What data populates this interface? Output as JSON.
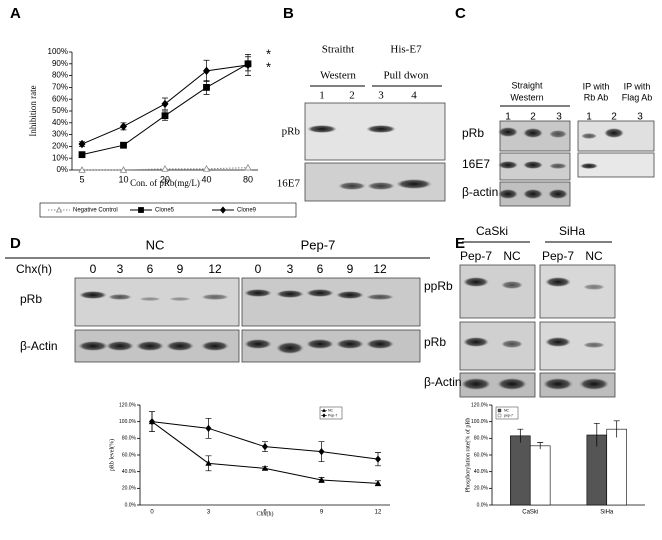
{
  "panel_labels": [
    "A",
    "B",
    "C",
    "D",
    "E"
  ],
  "chart_data": [
    {
      "type": "line",
      "xlabel": "Con. of pRb(mg/L)",
      "ylabel": "Inhibition rate",
      "categories": [
        "5",
        "10",
        "20",
        "40",
        "80"
      ],
      "ylim": [
        0,
        100
      ],
      "yticks": [
        {
          "value": 0,
          "label": "0%"
        },
        {
          "value": 10,
          "label": "10%"
        },
        {
          "value": 20,
          "label": "20%"
        },
        {
          "value": 30,
          "label": "30%"
        },
        {
          "value": 40,
          "label": "40%"
        },
        {
          "value": 50,
          "label": "50%"
        },
        {
          "value": 60,
          "label": "60%"
        },
        {
          "value": 70,
          "label": "70%"
        },
        {
          "value": 80,
          "label": "80%"
        },
        {
          "value": 90,
          "label": "90%"
        },
        {
          "value": 100,
          "label": "100%"
        }
      ],
      "annotations": [
        "*",
        "*"
      ],
      "legend_position": "bottom",
      "series": [
        {
          "name": "Negative Control",
          "color": "#888888",
          "marker": "triangle",
          "linestyle": "dotted",
          "values": [
            0,
            0,
            1,
            1,
            2
          ]
        },
        {
          "name": "Clone5",
          "color": "#000000",
          "marker": "square",
          "linestyle": "solid",
          "values": [
            13,
            21,
            46,
            70,
            90
          ],
          "errors": [
            2,
            2,
            4,
            6,
            6
          ]
        },
        {
          "name": "Clone9",
          "color": "#000000",
          "marker": "diamond",
          "linestyle": "solid",
          "values": [
            22,
            37,
            56,
            84,
            89
          ],
          "errors": [
            2,
            3,
            5,
            9,
            9
          ]
        }
      ]
    },
    {
      "type": "line",
      "xlabel": "Chx(h)",
      "ylabel": "pRb level(%)",
      "categories": [
        "0",
        "3",
        "6",
        "9",
        "12"
      ],
      "ylim": [
        0,
        120
      ],
      "yticks": [
        {
          "value": 0,
          "label": "0.0%"
        },
        {
          "value": 20,
          "label": "20.0%"
        },
        {
          "value": 40,
          "label": "40.0%"
        },
        {
          "value": 60,
          "label": "60.0%"
        },
        {
          "value": 80,
          "label": "80.0%"
        },
        {
          "value": 100,
          "label": "100.0%"
        },
        {
          "value": 120,
          "label": "120.0%"
        }
      ],
      "legend_position": "upper right",
      "series": [
        {
          "name": "NC",
          "color": "#000000",
          "marker": "triangle",
          "linestyle": "solid",
          "values": [
            100,
            50,
            44,
            30,
            26
          ],
          "errors": [
            12,
            9,
            2,
            3,
            3
          ]
        },
        {
          "name": "Pep-7",
          "color": "#000000",
          "marker": "diamond",
          "linestyle": "solid",
          "values": [
            100,
            92,
            70,
            64,
            55
          ],
          "errors": [
            12,
            12,
            6,
            12,
            8
          ]
        }
      ]
    },
    {
      "type": "bar",
      "ylabel": "Phosphorylation rate(% of pRb",
      "categories": [
        "CaSki",
        "SiHa"
      ],
      "ylim": [
        0,
        120
      ],
      "yticks": [
        {
          "value": 0,
          "label": "0.0%"
        },
        {
          "value": 20,
          "label": "20.0%"
        },
        {
          "value": 40,
          "label": "40.0%"
        },
        {
          "value": 60,
          "label": "60.0%"
        },
        {
          "value": 80,
          "label": "80.0%"
        },
        {
          "value": 100,
          "label": "100.0%"
        },
        {
          "value": 120,
          "label": "120.0%"
        }
      ],
      "legend_position": "upper left",
      "series": [
        {
          "name": "NC",
          "color": "#555555",
          "values": [
            83,
            84
          ],
          "errors": [
            8,
            14
          ]
        },
        {
          "name": "pep-7",
          "color": "#ffffff",
          "values": [
            71,
            91
          ],
          "errors": [
            4,
            10
          ]
        }
      ]
    }
  ],
  "blots": {
    "B": {
      "headers": [
        "Straitht",
        "Western",
        "His-E7",
        "Pull dwon"
      ],
      "lanes": [
        "1",
        "2",
        "3",
        "4"
      ],
      "rows": [
        "pRb",
        "16E7"
      ]
    },
    "C": {
      "headers": [
        "Straight",
        "Western",
        "IP with",
        "Rb Ab",
        "IP with",
        "Flag Ab"
      ],
      "lanes": [
        "1",
        "2",
        "3",
        "1",
        "2",
        "3"
      ],
      "rows": [
        "pRb",
        "16E7",
        "β-actin"
      ]
    },
    "D": {
      "groups": [
        "NC",
        "Pep-7"
      ],
      "time_label": "Chx(h)",
      "lanes": [
        "0",
        "3",
        "6",
        "9",
        "12",
        "0",
        "3",
        "6",
        "9",
        "12"
      ],
      "rows": [
        "pRb",
        "β-Actin"
      ]
    },
    "E": {
      "groups": [
        "CaSki",
        "SiHa"
      ],
      "lanes": [
        "Pep-7",
        "NC",
        "Pep-7",
        "NC"
      ],
      "rows": [
        "ppRb",
        "pRb",
        "β-Actin"
      ]
    }
  }
}
